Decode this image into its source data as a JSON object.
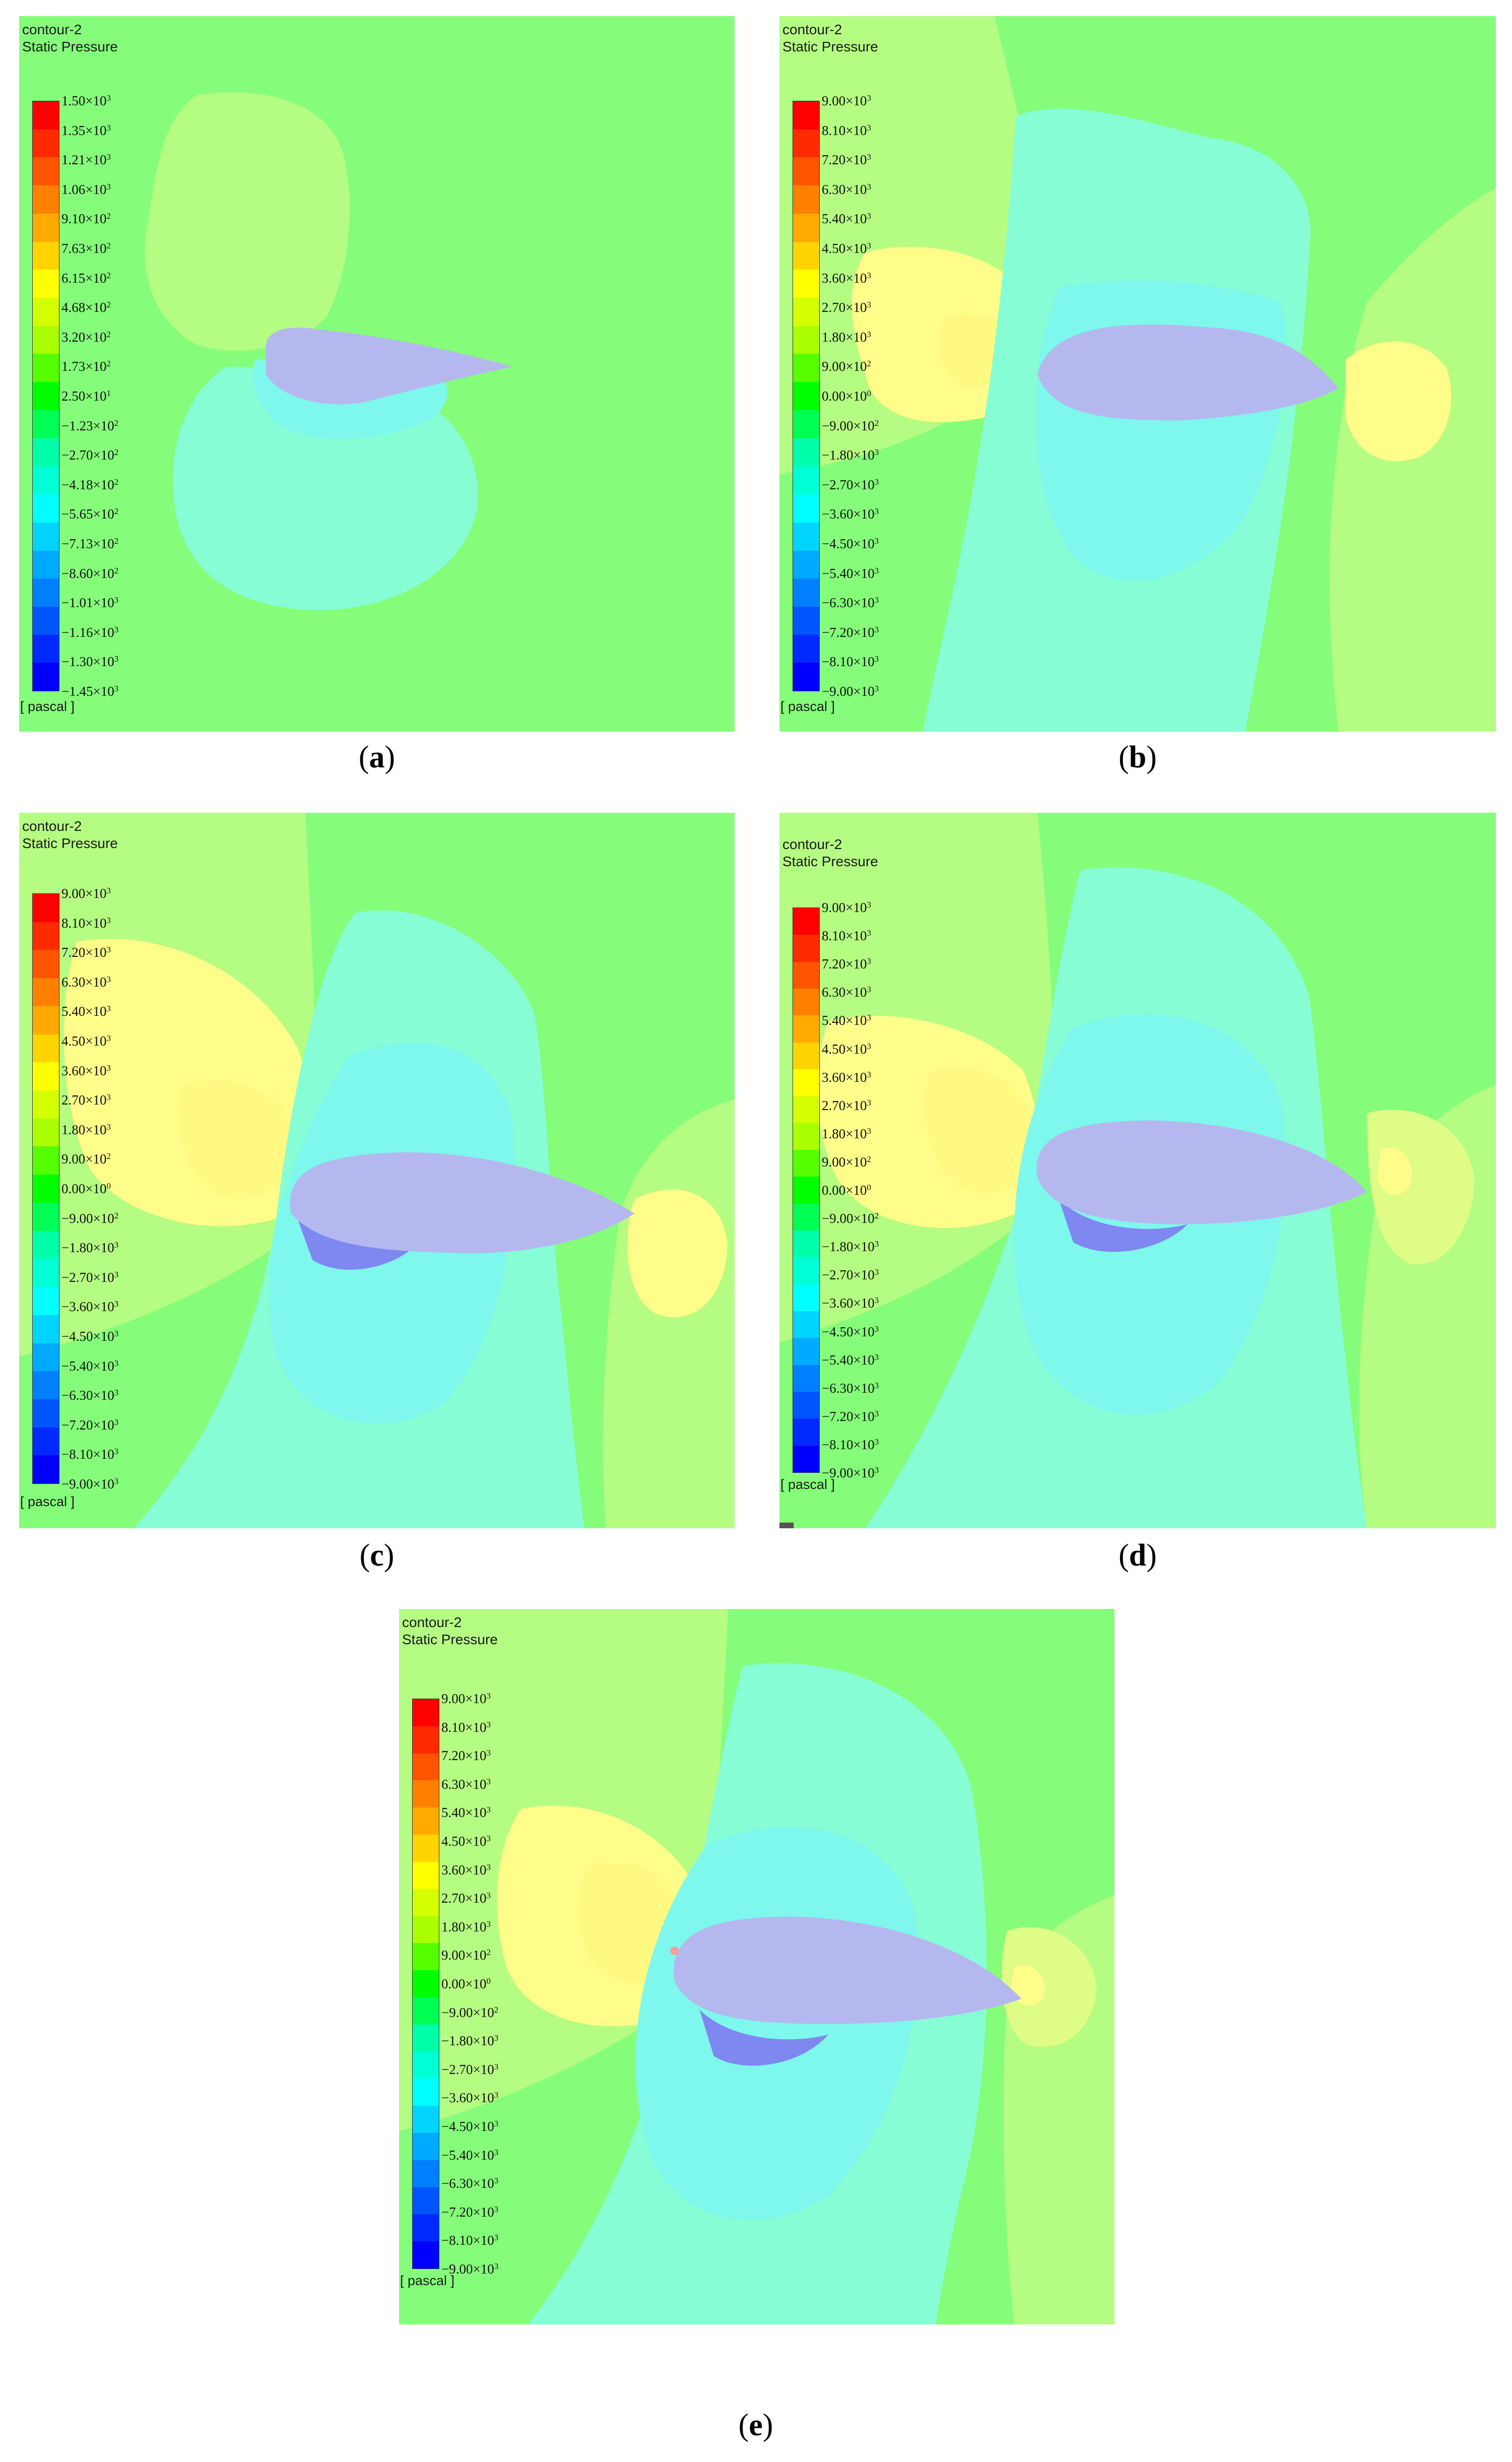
{
  "figure": {
    "colorbar_colors": [
      "#ff0000",
      "#ff2a00",
      "#ff5500",
      "#ff8000",
      "#ffaa00",
      "#ffd400",
      "#ffff00",
      "#d4ff00",
      "#aaff00",
      "#55ff00",
      "#00ff00",
      "#00ff55",
      "#00ffaa",
      "#00ffd4",
      "#00ffff",
      "#00d4ff",
      "#00aaff",
      "#0080ff",
      "#0055ff",
      "#002aff",
      "#0000ff"
    ],
    "field_colors": {
      "background": "#85fd7a",
      "green_yellow": "#b5fc82",
      "yellow": "#fefd8a",
      "yellow_light": "#dffd86",
      "cyan": "#86fdd4",
      "cyan_mid": "#7ef7ec",
      "cyan_deep": "#76e9fe",
      "airfoil": "#b5b8ef",
      "blue_under": "#7f87f0"
    },
    "panels": [
      {
        "id": "a",
        "title": "contour-2",
        "subtitle": "Static Pressure",
        "unit": "[ pascal ]",
        "caption_letter": "a",
        "ticks": [
          {
            "m": "1.50",
            "e": "3"
          },
          {
            "m": "1.35",
            "e": "3"
          },
          {
            "m": "1.21",
            "e": "3"
          },
          {
            "m": "1.06",
            "e": "3"
          },
          {
            "m": "9.10",
            "e": "2"
          },
          {
            "m": "7.63",
            "e": "2"
          },
          {
            "m": "6.15",
            "e": "2"
          },
          {
            "m": "4.68",
            "e": "2"
          },
          {
            "m": "3.20",
            "e": "2"
          },
          {
            "m": "1.73",
            "e": "2"
          },
          {
            "m": "2.50",
            "e": "1"
          },
          {
            "m": "−1.23",
            "e": "2"
          },
          {
            "m": "−2.70",
            "e": "2"
          },
          {
            "m": "−4.18",
            "e": "2"
          },
          {
            "m": "−5.65",
            "e": "2"
          },
          {
            "m": "−7.13",
            "e": "2"
          },
          {
            "m": "−8.60",
            "e": "2"
          },
          {
            "m": "−1.01",
            "e": "3"
          },
          {
            "m": "−1.16",
            "e": "3"
          },
          {
            "m": "−1.30",
            "e": "3"
          },
          {
            "m": "−1.45",
            "e": "3"
          }
        ]
      },
      {
        "id": "b",
        "title": "contour-2",
        "subtitle": "Static Pressure",
        "unit": "[ pascal ]",
        "caption_letter": "b",
        "ticks": [
          {
            "m": "9.00",
            "e": "3"
          },
          {
            "m": "8.10",
            "e": "3"
          },
          {
            "m": "7.20",
            "e": "3"
          },
          {
            "m": "6.30",
            "e": "3"
          },
          {
            "m": "5.40",
            "e": "3"
          },
          {
            "m": "4.50",
            "e": "3"
          },
          {
            "m": "3.60",
            "e": "3"
          },
          {
            "m": "2.70",
            "e": "3"
          },
          {
            "m": "1.80",
            "e": "3"
          },
          {
            "m": "9.00",
            "e": "2"
          },
          {
            "m": "0.00",
            "e": "0"
          },
          {
            "m": "−9.00",
            "e": "2"
          },
          {
            "m": "−1.80",
            "e": "3"
          },
          {
            "m": "−2.70",
            "e": "3"
          },
          {
            "m": "−3.60",
            "e": "3"
          },
          {
            "m": "−4.50",
            "e": "3"
          },
          {
            "m": "−5.40",
            "e": "3"
          },
          {
            "m": "−6.30",
            "e": "3"
          },
          {
            "m": "−7.20",
            "e": "3"
          },
          {
            "m": "−8.10",
            "e": "3"
          },
          {
            "m": "−9.00",
            "e": "3"
          }
        ]
      },
      {
        "id": "c",
        "title": "contour-2",
        "subtitle": "Static Pressure",
        "unit": "[ pascal ]",
        "caption_letter": "c",
        "ticks": [
          {
            "m": "9.00",
            "e": "3"
          },
          {
            "m": "8.10",
            "e": "3"
          },
          {
            "m": "7.20",
            "e": "3"
          },
          {
            "m": "6.30",
            "e": "3"
          },
          {
            "m": "5.40",
            "e": "3"
          },
          {
            "m": "4.50",
            "e": "3"
          },
          {
            "m": "3.60",
            "e": "3"
          },
          {
            "m": "2.70",
            "e": "3"
          },
          {
            "m": "1.80",
            "e": "3"
          },
          {
            "m": "9.00",
            "e": "2"
          },
          {
            "m": "0.00",
            "e": "0"
          },
          {
            "m": "−9.00",
            "e": "2"
          },
          {
            "m": "−1.80",
            "e": "3"
          },
          {
            "m": "−2.70",
            "e": "3"
          },
          {
            "m": "−3.60",
            "e": "3"
          },
          {
            "m": "−4.50",
            "e": "3"
          },
          {
            "m": "−5.40",
            "e": "3"
          },
          {
            "m": "−6.30",
            "e": "3"
          },
          {
            "m": "−7.20",
            "e": "3"
          },
          {
            "m": "−8.10",
            "e": "3"
          },
          {
            "m": "−9.00",
            "e": "3"
          }
        ]
      },
      {
        "id": "d",
        "title": "contour-2",
        "subtitle": "Static Pressure",
        "unit": "[ pascal ]",
        "caption_letter": "d",
        "ticks": [
          {
            "m": "9.00",
            "e": "3"
          },
          {
            "m": "8.10",
            "e": "3"
          },
          {
            "m": "7.20",
            "e": "3"
          },
          {
            "m": "6.30",
            "e": "3"
          },
          {
            "m": "5.40",
            "e": "3"
          },
          {
            "m": "4.50",
            "e": "3"
          },
          {
            "m": "3.60",
            "e": "3"
          },
          {
            "m": "2.70",
            "e": "3"
          },
          {
            "m": "1.80",
            "e": "3"
          },
          {
            "m": "9.00",
            "e": "2"
          },
          {
            "m": "0.00",
            "e": "0"
          },
          {
            "m": "−9.00",
            "e": "2"
          },
          {
            "m": "−1.80",
            "e": "3"
          },
          {
            "m": "−2.70",
            "e": "3"
          },
          {
            "m": "−3.60",
            "e": "3"
          },
          {
            "m": "−4.50",
            "e": "3"
          },
          {
            "m": "−5.40",
            "e": "3"
          },
          {
            "m": "−6.30",
            "e": "3"
          },
          {
            "m": "−7.20",
            "e": "3"
          },
          {
            "m": "−8.10",
            "e": "3"
          },
          {
            "m": "−9.00",
            "e": "3"
          }
        ]
      },
      {
        "id": "e",
        "title": "contour-2",
        "subtitle": "Static Pressure",
        "unit": "[ pascal ]",
        "caption_letter": "e",
        "ticks": [
          {
            "m": "9.00",
            "e": "3"
          },
          {
            "m": "8.10",
            "e": "3"
          },
          {
            "m": "7.20",
            "e": "3"
          },
          {
            "m": "6.30",
            "e": "3"
          },
          {
            "m": "5.40",
            "e": "3"
          },
          {
            "m": "4.50",
            "e": "3"
          },
          {
            "m": "3.60",
            "e": "3"
          },
          {
            "m": "2.70",
            "e": "3"
          },
          {
            "m": "1.80",
            "e": "3"
          },
          {
            "m": "9.00",
            "e": "2"
          },
          {
            "m": "0.00",
            "e": "0"
          },
          {
            "m": "−9.00",
            "e": "2"
          },
          {
            "m": "−1.80",
            "e": "3"
          },
          {
            "m": "−2.70",
            "e": "3"
          },
          {
            "m": "−3.60",
            "e": "3"
          },
          {
            "m": "−4.50",
            "e": "3"
          },
          {
            "m": "−5.40",
            "e": "3"
          },
          {
            "m": "−6.30",
            "e": "3"
          },
          {
            "m": "−7.20",
            "e": "3"
          },
          {
            "m": "−8.10",
            "e": "3"
          },
          {
            "m": "−9.00",
            "e": "3"
          }
        ]
      }
    ]
  }
}
